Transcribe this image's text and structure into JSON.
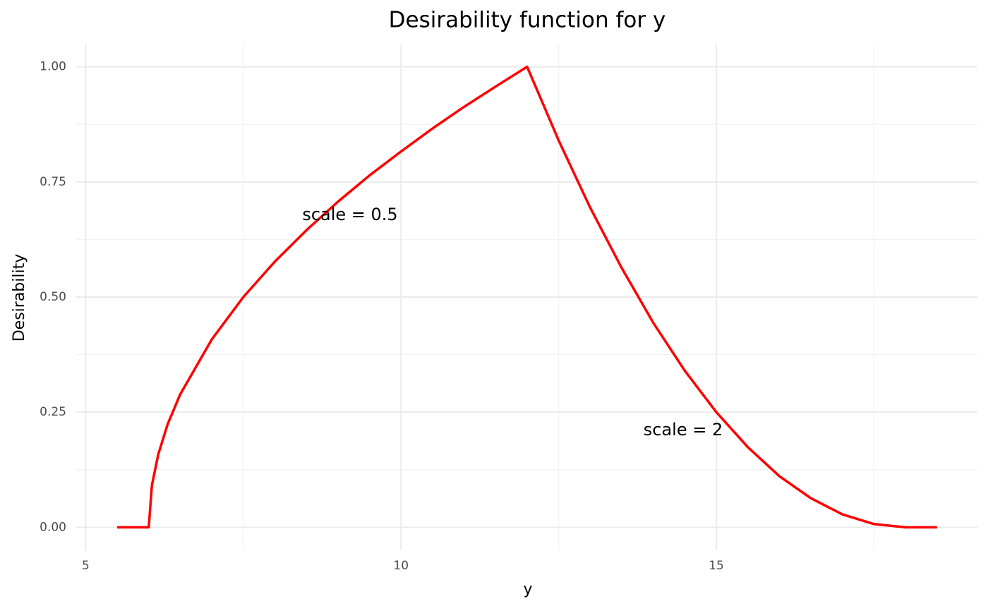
{
  "chart_data": {
    "type": "line",
    "title": "Desirability function for y",
    "x_label": "y",
    "y_label": "Desirability",
    "x": [
      5.5,
      6,
      6.05,
      6.15,
      6.3,
      6.5,
      7,
      7.5,
      8,
      8.5,
      9,
      9.5,
      10,
      10.5,
      11,
      11.5,
      12,
      12.5,
      13,
      13.5,
      14,
      14.5,
      15,
      15.5,
      16,
      16.5,
      17,
      17.5,
      18,
      18.5
    ],
    "series": [
      {
        "color": "#ff0000",
        "values": [
          0,
          0,
          0.091,
          0.158,
          0.224,
          0.289,
          0.408,
          0.5,
          0.577,
          0.645,
          0.707,
          0.764,
          0.816,
          0.866,
          0.913,
          0.957,
          1,
          0.84,
          0.694,
          0.563,
          0.444,
          0.34,
          0.25,
          0.174,
          0.111,
          0.063,
          0.028,
          0.007,
          0,
          0
        ]
      }
    ],
    "annotations": [
      "scale = 0.5",
      "scale = 2"
    ],
    "xlim": [
      4.85,
      19.14
    ],
    "ylim": [
      -0.05,
      1.05
    ],
    "xticks": [
      5,
      10,
      15
    ],
    "yticks": [
      {
        "value": 0,
        "label": "0.00"
      },
      {
        "value": 0.25,
        "label": "0.25"
      },
      {
        "value": 0.5,
        "label": "0.50"
      },
      {
        "value": 0.75,
        "label": "0.75"
      },
      {
        "value": 1,
        "label": "1.00"
      }
    ],
    "x_minor_grid": [
      7.5,
      12.5,
      17.5
    ],
    "y_minor_grid": [
      0.125,
      0.375,
      0.625,
      0.875
    ],
    "grid": true
  }
}
